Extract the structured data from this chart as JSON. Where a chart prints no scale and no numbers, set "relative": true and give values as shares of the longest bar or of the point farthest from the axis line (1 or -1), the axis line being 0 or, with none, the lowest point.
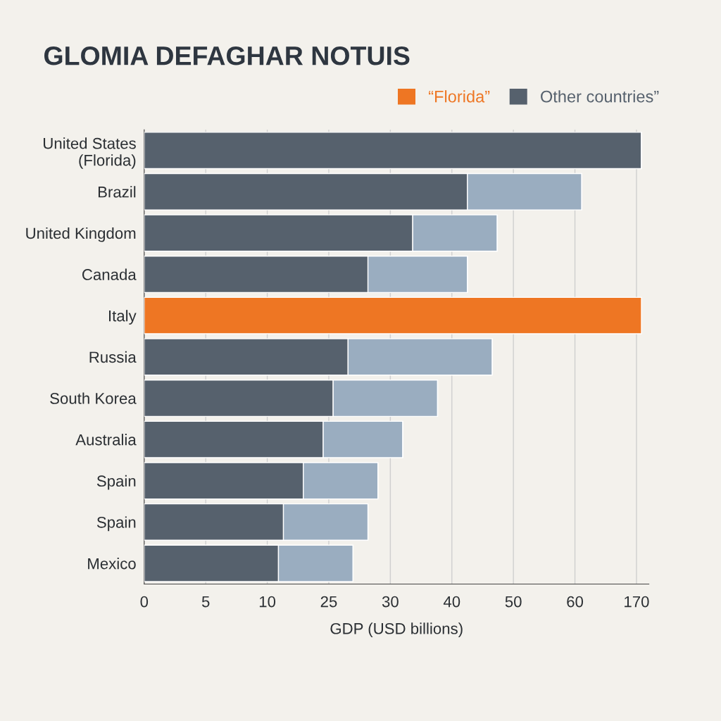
{
  "chart_data": {
    "type": "bar",
    "orientation": "horizontal",
    "stacked": true,
    "relative": true,
    "title": "GLOMIA DEFAGHAR NOTUIS",
    "xlabel": "GDP (USD billions)",
    "categories": [
      "United States\n(Florida)",
      "Brazil",
      "United Kingdom",
      "Canada",
      "Italy",
      "Russia",
      "South Korea",
      "Australia",
      "Spain",
      "Spain",
      "Mexico"
    ],
    "series": [
      {
        "name": "Other countries”",
        "color": "#56616d",
        "values": [
          1.0,
          0.65,
          0.54,
          0.45,
          null,
          0.41,
          0.38,
          0.36,
          0.32,
          0.28,
          0.27
        ]
      },
      {
        "color": "#9aadc0",
        "values": [
          null,
          0.23,
          0.17,
          0.2,
          null,
          0.29,
          0.21,
          0.16,
          0.15,
          0.17,
          0.15
        ]
      },
      {
        "name": "“Florida”",
        "color": "#ee7623",
        "values": [
          null,
          null,
          null,
          null,
          1.0,
          null,
          null,
          null,
          null,
          null,
          null
        ]
      }
    ],
    "annotations": [
      "0",
      "5",
      "10",
      "25",
      "30",
      "40",
      "50",
      "60",
      "170"
    ],
    "grid": "x",
    "legend": "top right"
  }
}
